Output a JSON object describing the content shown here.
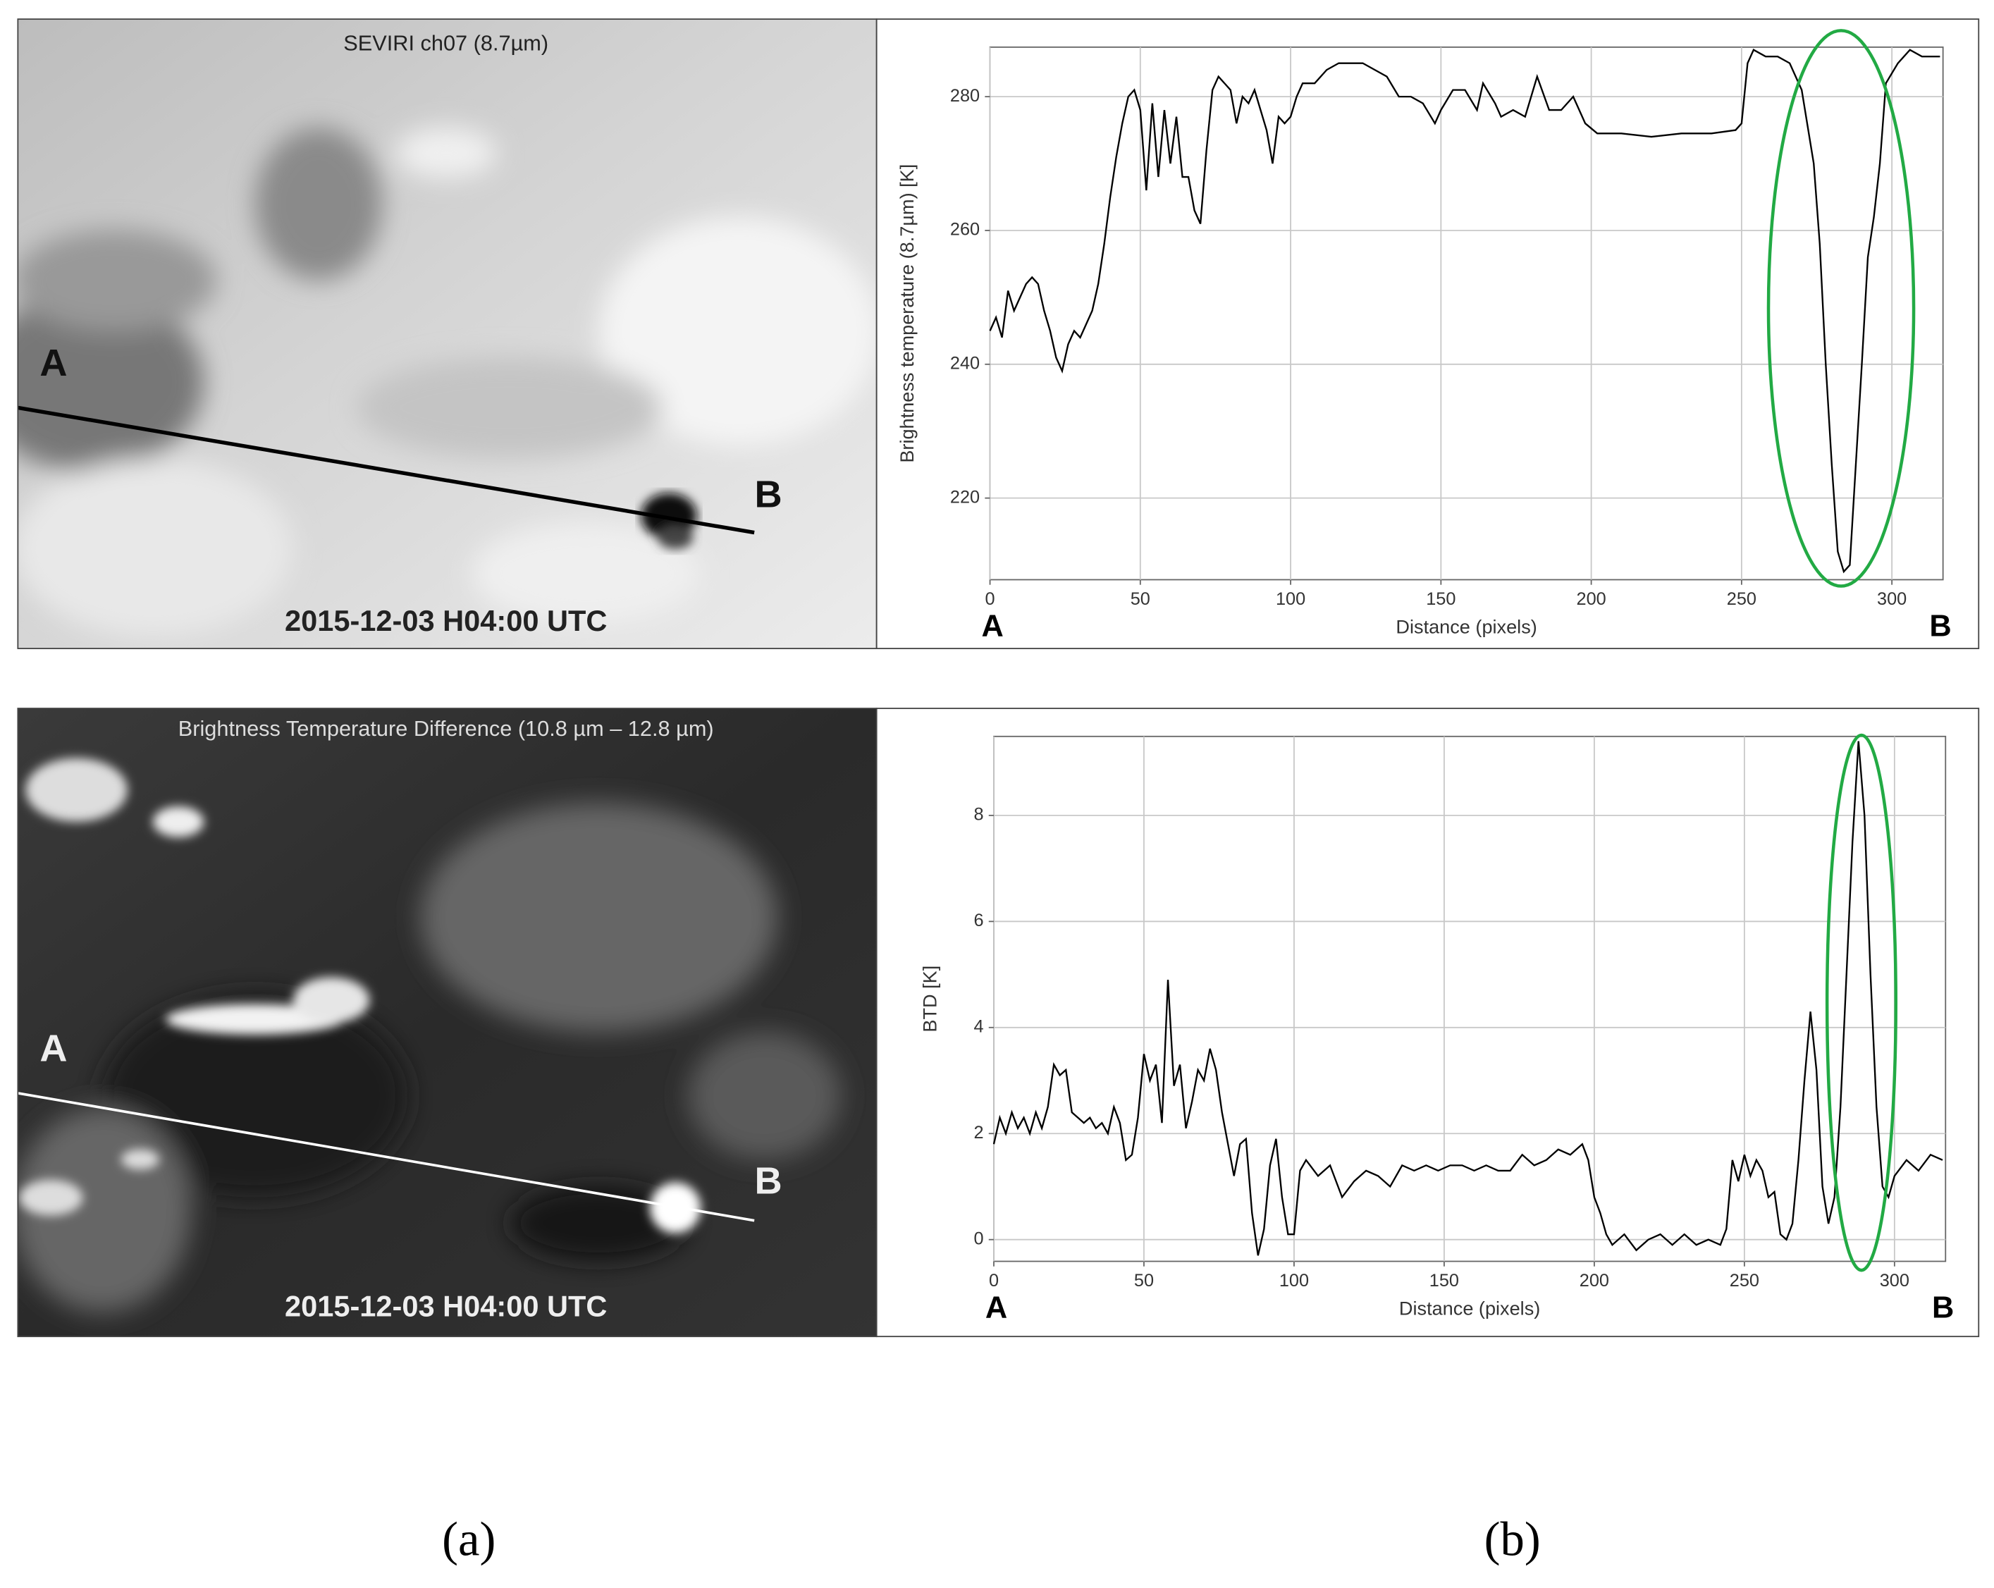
{
  "figure": {
    "images": [
      {
        "title": "SEVIRI ch07 (8.7µm)",
        "timestamp": "2015-12-03 H04:00 UTC",
        "point_labels": [
          "A",
          "B"
        ]
      },
      {
        "title": "Brightness Temperature Difference  (10.8 µm – 12.8 µm)",
        "timestamp": "2015-12-03 H04:00 UTC",
        "point_labels": [
          "A",
          "B"
        ]
      }
    ],
    "panel_labels": [
      "(a)",
      "(b)"
    ]
  },
  "chart_data": [
    {
      "type": "line",
      "x_label": "Distance (pixels)",
      "y_label": "Brightness temperature (8.7µm) [K]",
      "annotations": [
        "A",
        "B"
      ],
      "grid": true,
      "color": "#000000",
      "highlight_color": "#22aa44",
      "xlim": [
        0,
        317
      ],
      "ylim": [
        207.8,
        287.4
      ],
      "xticks": [
        0,
        50,
        100,
        150,
        200,
        250,
        300
      ],
      "yticks": [
        220,
        240,
        260,
        280
      ],
      "x": [
        0,
        2,
        4,
        6,
        8,
        10,
        12,
        14,
        16,
        18,
        20,
        22,
        24,
        26,
        28,
        30,
        32,
        34,
        36,
        38,
        40,
        42,
        44,
        46,
        48,
        50,
        52,
        54,
        56,
        58,
        60,
        62,
        64,
        66,
        68,
        70,
        72,
        74,
        76,
        78,
        80,
        82,
        84,
        86,
        88,
        90,
        92,
        94,
        96,
        98,
        100,
        102,
        104,
        108,
        112,
        116,
        120,
        124,
        128,
        132,
        136,
        140,
        144,
        148,
        150,
        154,
        158,
        162,
        164,
        168,
        170,
        174,
        178,
        182,
        186,
        190,
        194,
        198,
        202,
        210,
        220,
        230,
        240,
        248,
        250,
        252,
        254,
        258,
        262,
        266,
        270,
        274,
        276,
        278,
        280,
        282,
        284,
        286,
        288,
        290,
        292,
        294,
        296,
        298,
        302,
        306,
        310,
        316
      ],
      "values": [
        245,
        247,
        244,
        251,
        248,
        250,
        252,
        253,
        252,
        248,
        245,
        241,
        239,
        243,
        245,
        244,
        246,
        248,
        252,
        258,
        265,
        271,
        276,
        280,
        281,
        278,
        266,
        279,
        268,
        278,
        270,
        277,
        268,
        268,
        263,
        261,
        272,
        281,
        283,
        282,
        281,
        276,
        280,
        279,
        281,
        278,
        275,
        270,
        277,
        276,
        277,
        280,
        282,
        282,
        284,
        285,
        285,
        285,
        284,
        283,
        280,
        280,
        279,
        276,
        278,
        281,
        281,
        278,
        282,
        279,
        277,
        278,
        277,
        283,
        278,
        278,
        280,
        276,
        274.5,
        274.5,
        274,
        274.5,
        274.5,
        275,
        276,
        285,
        287,
        286,
        286,
        285,
        281,
        270,
        258,
        240,
        225,
        212,
        209,
        210,
        225,
        240,
        256,
        262,
        270,
        282,
        285,
        287,
        286,
        286
      ]
    },
    {
      "type": "line",
      "x_label": "Distance (pixels)",
      "y_label": "BTD [K]",
      "annotations": [
        "A",
        "B"
      ],
      "grid": true,
      "color": "#000000",
      "highlight_color": "#22aa44",
      "xlim": [
        0,
        317
      ],
      "ylim": [
        -0.41,
        9.49
      ],
      "xticks": [
        0,
        50,
        100,
        150,
        200,
        250,
        300
      ],
      "yticks": [
        0,
        2,
        4,
        6,
        8
      ],
      "x": [
        0,
        2,
        4,
        6,
        8,
        10,
        12,
        14,
        16,
        18,
        20,
        22,
        24,
        26,
        28,
        30,
        32,
        34,
        36,
        38,
        40,
        42,
        44,
        46,
        48,
        50,
        52,
        54,
        56,
        58,
        60,
        62,
        64,
        66,
        68,
        70,
        72,
        74,
        76,
        78,
        80,
        82,
        84,
        86,
        88,
        90,
        92,
        94,
        96,
        98,
        100,
        102,
        104,
        108,
        112,
        116,
        120,
        124,
        128,
        132,
        136,
        140,
        144,
        148,
        152,
        156,
        160,
        164,
        168,
        172,
        176,
        180,
        184,
        188,
        192,
        196,
        198,
        200,
        202,
        204,
        206,
        210,
        214,
        218,
        222,
        226,
        230,
        234,
        238,
        242,
        244,
        246,
        248,
        250,
        252,
        254,
        256,
        258,
        260,
        262,
        264,
        266,
        268,
        270,
        272,
        274,
        276,
        278,
        280,
        282,
        284,
        286,
        288,
        290,
        292,
        294,
        296,
        298,
        300,
        304,
        308,
        312,
        316
      ],
      "values": [
        1.8,
        2.3,
        2.0,
        2.4,
        2.1,
        2.3,
        2.0,
        2.4,
        2.1,
        2.5,
        3.3,
        3.1,
        3.2,
        2.4,
        2.3,
        2.2,
        2.3,
        2.1,
        2.2,
        2.0,
        2.5,
        2.2,
        1.5,
        1.6,
        2.3,
        3.5,
        3.0,
        3.3,
        2.2,
        4.9,
        2.9,
        3.3,
        2.1,
        2.6,
        3.2,
        3.0,
        3.6,
        3.2,
        2.4,
        1.8,
        1.2,
        1.8,
        1.9,
        0.5,
        -0.3,
        0.2,
        1.4,
        1.9,
        0.8,
        0.1,
        0.1,
        1.3,
        1.5,
        1.2,
        1.4,
        0.8,
        1.1,
        1.3,
        1.2,
        1.0,
        1.4,
        1.3,
        1.4,
        1.3,
        1.4,
        1.4,
        1.3,
        1.4,
        1.3,
        1.3,
        1.6,
        1.4,
        1.5,
        1.7,
        1.6,
        1.8,
        1.5,
        0.8,
        0.5,
        0.1,
        -0.1,
        0.1,
        -0.2,
        0.0,
        0.1,
        -0.1,
        0.1,
        -0.1,
        0.0,
        -0.1,
        0.2,
        1.5,
        1.1,
        1.6,
        1.2,
        1.5,
        1.3,
        0.8,
        0.9,
        0.1,
        0.0,
        0.3,
        1.5,
        3.0,
        4.3,
        3.2,
        1.0,
        0.3,
        0.8,
        2.5,
        5.0,
        7.5,
        9.4,
        8.0,
        5.0,
        2.5,
        1.0,
        0.8,
        1.2,
        1.5,
        1.3,
        1.6,
        1.5
      ]
    }
  ]
}
